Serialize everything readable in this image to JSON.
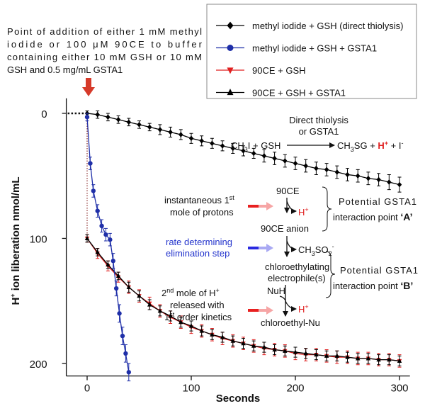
{
  "chart_data": {
    "type": "errorbar-line",
    "x_label": "Seconds",
    "y_label": [
      "H",
      "+",
      " ion liberation nmol/mL"
    ],
    "xlim": [
      -20,
      310
    ],
    "ylim": [
      210,
      -12
    ],
    "xticks": [
      0,
      100,
      200,
      300
    ],
    "yticks": [
      0,
      100,
      200
    ],
    "legend": "top-right",
    "series": [
      {
        "name": "methyl iodide + GSH (direct thiolysis)",
        "color": "#000000",
        "marker": "diamond",
        "x": [
          0,
          10,
          20,
          30,
          40,
          50,
          60,
          70,
          80,
          90,
          100,
          110,
          120,
          130,
          140,
          150,
          160,
          170,
          180,
          190,
          200,
          210,
          220,
          230,
          240,
          250,
          260,
          270,
          280,
          290,
          300
        ],
        "values": [
          0,
          1,
          3,
          5,
          7,
          9,
          11,
          13,
          15,
          17,
          20,
          22,
          24,
          26,
          28,
          30,
          32,
          34,
          36,
          38,
          40,
          42,
          44,
          45,
          47,
          49,
          50,
          52,
          53,
          55,
          57
        ],
        "errors": [
          2,
          3,
          3,
          3,
          3,
          3,
          3,
          4,
          4,
          4,
          4,
          4,
          4,
          4,
          4,
          4,
          4,
          5,
          5,
          5,
          5,
          5,
          5,
          5,
          5,
          5,
          5,
          5,
          5,
          6,
          6
        ]
      },
      {
        "name": "methyl iodide + GSH + GSTA1",
        "color": "#1f2fa8",
        "marker": "circle",
        "x": [
          0,
          3,
          6,
          10,
          14,
          18,
          22,
          25,
          28,
          31,
          34,
          37,
          40
        ],
        "values": [
          3,
          40,
          62,
          78,
          90,
          97,
          101,
          118,
          140,
          160,
          178,
          192,
          207
        ],
        "errors": [
          3,
          5,
          5,
          5,
          5,
          5,
          5,
          6,
          6,
          7,
          7,
          7,
          7
        ]
      },
      {
        "name": "90CE + GSH",
        "color": "#e02020",
        "marker": "triangle-down",
        "x": [
          0,
          10,
          20,
          30,
          40,
          50,
          60,
          70,
          80,
          90,
          100,
          110,
          120,
          130,
          140,
          150,
          160,
          170,
          180,
          190,
          200,
          210,
          220,
          230,
          240,
          250,
          260,
          270,
          280,
          290,
          300
        ],
        "values": [
          100,
          112,
          122,
          131,
          139,
          146,
          152,
          158,
          163,
          167,
          171,
          174,
          177,
          180,
          182,
          184,
          186,
          188,
          189,
          190,
          192,
          193,
          193,
          194,
          195,
          195,
          196,
          196,
          197,
          197,
          198
        ],
        "errors": [
          3,
          4,
          4,
          4,
          5,
          5,
          5,
          5,
          5,
          5,
          5,
          5,
          5,
          5,
          5,
          5,
          5,
          5,
          5,
          5,
          5,
          5,
          5,
          5,
          5,
          5,
          5,
          5,
          5,
          5,
          5
        ]
      },
      {
        "name": "90CE + GSH + GSTA1",
        "color": "#000000",
        "marker": "triangle-up",
        "x": [
          0,
          10,
          20,
          30,
          40,
          50,
          60,
          70,
          80,
          90,
          100,
          110,
          120,
          130,
          140,
          150,
          160,
          170,
          180,
          190,
          200,
          210,
          220,
          230,
          240,
          250,
          260,
          270,
          280,
          290,
          300
        ],
        "values": [
          100,
          111,
          121,
          130,
          139,
          146,
          153,
          158,
          162,
          167,
          170,
          174,
          177,
          179,
          182,
          184,
          186,
          187,
          189,
          190,
          191,
          192,
          193,
          194,
          194,
          195,
          196,
          196,
          197,
          197,
          198
        ],
        "errors": [
          3,
          3,
          3,
          3,
          4,
          4,
          4,
          4,
          4,
          4,
          4,
          4,
          4,
          4,
          4,
          4,
          4,
          4,
          4,
          4,
          4,
          4,
          4,
          4,
          4,
          4,
          4,
          4,
          4,
          4,
          4
        ]
      }
    ],
    "annotations": {
      "addition_note": [
        "Point of addition of either 1 mM methyl",
        "iodide or 100 μM 90CE to buffer",
        "containing either 10 mM GSH or 10 mM",
        "GSH and 0.5 mg/mL GSTA1"
      ],
      "thiolysis_label": [
        "Direct thiolysis",
        "or GSTA1"
      ],
      "equation": [
        "CH",
        "3",
        "I + GSH",
        "CH",
        "3",
        "SG + ",
        "H",
        "+",
        " + I",
        "-"
      ],
      "first_mole": [
        "instantaneous 1",
        "st",
        "mole of protons"
      ],
      "rate_step": [
        "rate determining",
        "elimination step"
      ],
      "second_mole": [
        "2",
        "nd",
        " mole of H",
        "+",
        "released with",
        "1",
        "st",
        " order kinetics"
      ],
      "scheme": [
        "90CE",
        "H",
        "+",
        "90CE anion",
        "CH",
        "3",
        "SO",
        "2",
        "-",
        "chloroethylating",
        "electrophile(s)",
        "NuH",
        "H",
        "+",
        "chloroethyl-Nu"
      ],
      "point_a": [
        "Potential GSTA1",
        "interaction point ",
        "‘A’"
      ],
      "point_b": [
        "Potential GSTA1",
        "interaction point ",
        "‘B’"
      ]
    }
  }
}
